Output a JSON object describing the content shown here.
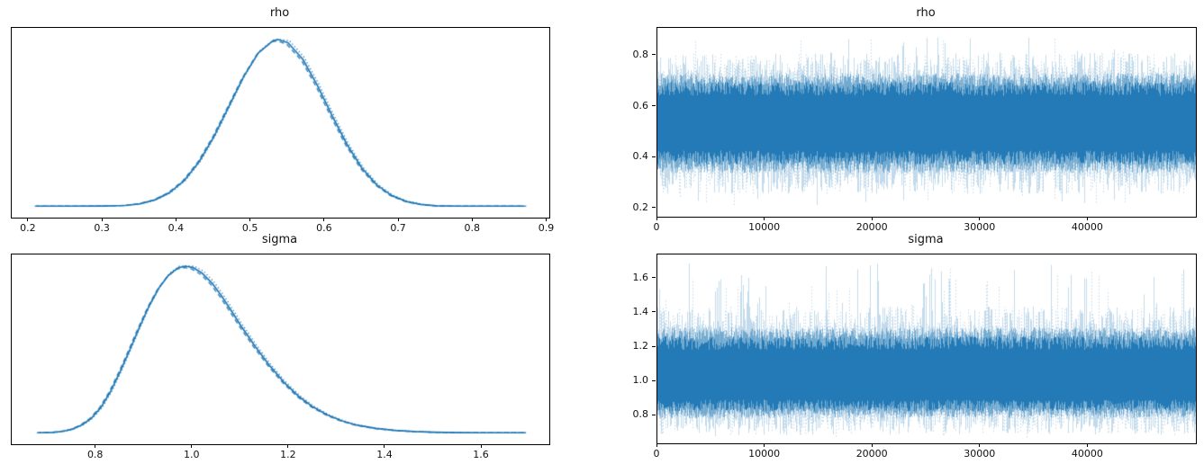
{
  "figure": {
    "background": "#ffffff",
    "accent_color": "#1f77b4",
    "trace_fringe_color": "#a9c9e4",
    "trace_core_color": "#4c92c3",
    "description": "MCMC trace plot figure: posterior density (left column) and sampled trace (right column) for parameters rho and sigma"
  },
  "chart_data": [
    {
      "id": "rho-density",
      "type": "line",
      "subtype": "kde",
      "title": "rho",
      "xlabel": "",
      "ylabel": "",
      "xlim": [
        0.177,
        0.903
      ],
      "xticks": [
        0.2,
        0.3,
        0.4,
        0.5,
        0.6,
        0.7,
        0.8,
        0.9
      ],
      "xtick_labels": [
        "0.2",
        "0.3",
        "0.4",
        "0.5",
        "0.6",
        "0.7",
        "0.8",
        "0.9"
      ],
      "yticks": [],
      "ytick_labels": [],
      "grid": false,
      "legend": "none",
      "line_color": "#1f77b4",
      "chain_linestyles": [
        "solid",
        "dotted",
        "dashed"
      ],
      "peak_x": 0.537,
      "data_range": [
        0.21,
        0.87
      ],
      "points": [
        [
          0.21,
          0.004
        ],
        [
          0.26,
          0.004
        ],
        [
          0.3,
          0.005
        ],
        [
          0.33,
          0.008
        ],
        [
          0.35,
          0.018
        ],
        [
          0.37,
          0.041
        ],
        [
          0.39,
          0.084
        ],
        [
          0.41,
          0.157
        ],
        [
          0.43,
          0.269
        ],
        [
          0.45,
          0.419
        ],
        [
          0.47,
          0.597
        ],
        [
          0.49,
          0.776
        ],
        [
          0.51,
          0.92
        ],
        [
          0.53,
          0.994
        ],
        [
          0.537,
          1.0
        ],
        [
          0.55,
          0.981
        ],
        [
          0.57,
          0.883
        ],
        [
          0.59,
          0.724
        ],
        [
          0.61,
          0.542
        ],
        [
          0.63,
          0.371
        ],
        [
          0.65,
          0.231
        ],
        [
          0.67,
          0.131
        ],
        [
          0.69,
          0.068
        ],
        [
          0.71,
          0.032
        ],
        [
          0.73,
          0.014
        ],
        [
          0.75,
          0.006
        ],
        [
          0.78,
          0.004
        ],
        [
          0.82,
          0.004
        ],
        [
          0.87,
          0.004
        ]
      ]
    },
    {
      "id": "rho-trace",
      "type": "trace",
      "title": "rho",
      "xlabel": "",
      "ylabel": "",
      "xlim": [
        0,
        50000
      ],
      "xticks": [
        0,
        10000,
        20000,
        30000,
        40000
      ],
      "xtick_labels": [
        "0",
        "10000",
        "20000",
        "30000",
        "40000"
      ],
      "ylim": [
        0.168,
        0.909
      ],
      "yticks": [
        0.2,
        0.4,
        0.6,
        0.8
      ],
      "ytick_labels": [
        "0.2",
        "0.4",
        "0.6",
        "0.8"
      ],
      "grid": false,
      "legend": "none",
      "line_color": "#1f77b4",
      "n_samples": 50000,
      "summary": {
        "center": 0.535,
        "band_low": 0.35,
        "band_high": 0.72,
        "min": 0.21,
        "max": 0.88,
        "seed": 101,
        "p_low_spike": 0.05,
        "p_high_spike": 0.05
      }
    },
    {
      "id": "sigma-density",
      "type": "line",
      "subtype": "kde",
      "title": "sigma",
      "xlabel": "",
      "ylabel": "",
      "xlim": [
        0.625,
        1.74
      ],
      "xticks": [
        0.8,
        1.0,
        1.2,
        1.4,
        1.6
      ],
      "xtick_labels": [
        "0.8",
        "1.0",
        "1.2",
        "1.4",
        "1.6"
      ],
      "yticks": [],
      "ytick_labels": [],
      "grid": false,
      "legend": "none",
      "line_color": "#1f77b4",
      "chain_linestyles": [
        "solid",
        "dotted",
        "dashed"
      ],
      "peak_x": 0.985,
      "data_range": [
        0.68,
        1.69
      ],
      "points": [
        [
          0.68,
          0.004
        ],
        [
          0.71,
          0.006
        ],
        [
          0.73,
          0.012
        ],
        [
          0.75,
          0.025
        ],
        [
          0.77,
          0.05
        ],
        [
          0.79,
          0.09
        ],
        [
          0.81,
          0.155
        ],
        [
          0.83,
          0.25
        ],
        [
          0.85,
          0.37
        ],
        [
          0.87,
          0.5
        ],
        [
          0.89,
          0.635
        ],
        [
          0.91,
          0.762
        ],
        [
          0.93,
          0.868
        ],
        [
          0.95,
          0.945
        ],
        [
          0.97,
          0.99
        ],
        [
          0.985,
          1.0
        ],
        [
          1.0,
          0.993
        ],
        [
          1.02,
          0.958
        ],
        [
          1.04,
          0.9
        ],
        [
          1.06,
          0.823
        ],
        [
          1.08,
          0.735
        ],
        [
          1.1,
          0.645
        ],
        [
          1.13,
          0.52
        ],
        [
          1.16,
          0.405
        ],
        [
          1.19,
          0.305
        ],
        [
          1.22,
          0.222
        ],
        [
          1.25,
          0.158
        ],
        [
          1.28,
          0.11
        ],
        [
          1.31,
          0.075
        ],
        [
          1.34,
          0.05
        ],
        [
          1.38,
          0.03
        ],
        [
          1.42,
          0.018
        ],
        [
          1.46,
          0.011
        ],
        [
          1.5,
          0.007
        ],
        [
          1.55,
          0.005
        ],
        [
          1.6,
          0.004
        ],
        [
          1.65,
          0.004
        ],
        [
          1.69,
          0.004
        ]
      ]
    },
    {
      "id": "sigma-trace",
      "type": "trace",
      "title": "sigma",
      "xlabel": "",
      "ylabel": "",
      "xlim": [
        0,
        50000
      ],
      "xticks": [
        0,
        10000,
        20000,
        30000,
        40000
      ],
      "xtick_labels": [
        "0",
        "10000",
        "20000",
        "30000",
        "40000"
      ],
      "ylim": [
        0.64,
        1.74
      ],
      "yticks": [
        0.8,
        1.0,
        1.2,
        1.4,
        1.6
      ],
      "ytick_labels": [
        "0.8",
        "1.0",
        "1.2",
        "1.4",
        "1.6"
      ],
      "grid": false,
      "legend": "none",
      "line_color": "#1f77b4",
      "n_samples": 50000,
      "summary": {
        "center": 1.025,
        "band_low": 0.8,
        "band_high": 1.3,
        "min": 0.675,
        "max": 1.69,
        "seed": 202,
        "p_low_spike": 0.03,
        "p_high_spike": 0.1
      }
    }
  ]
}
